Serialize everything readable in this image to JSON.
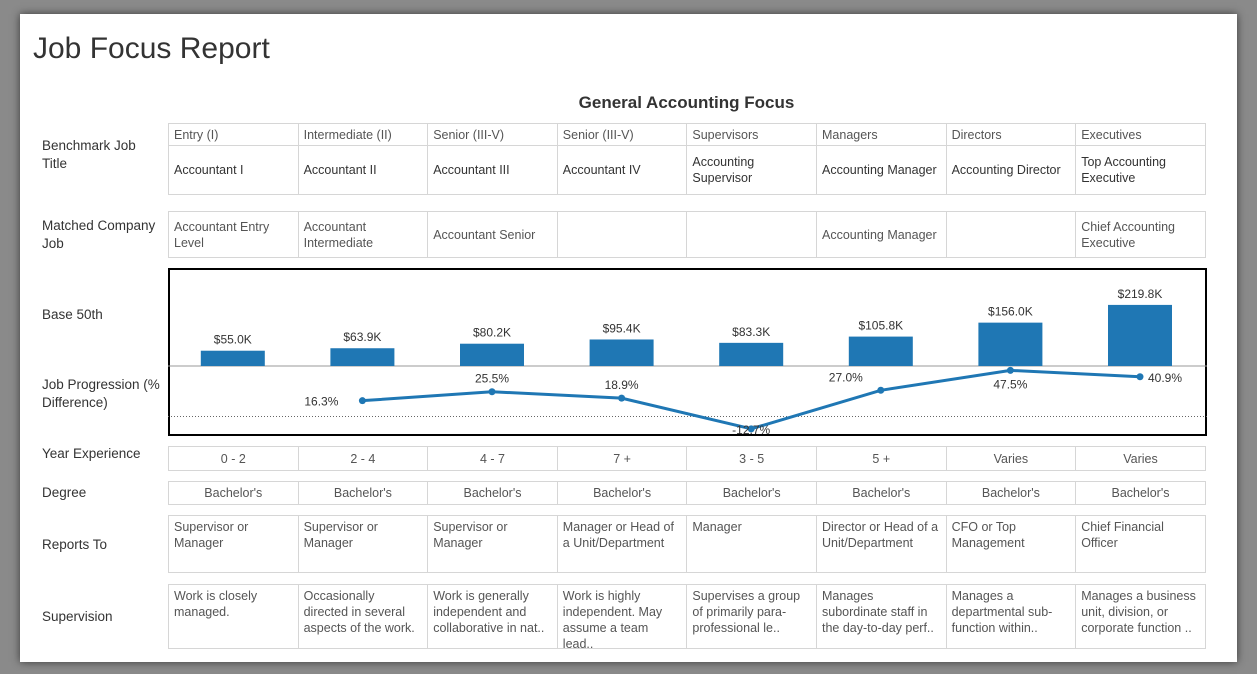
{
  "header": {
    "title": "Job Focus Report",
    "subtitle": "General Accounting Focus"
  },
  "row_labels": [
    "Benchmark Job Title",
    "Matched Company Job",
    "Base 50th",
    "Job Progression (% Difference)",
    "Year Experience",
    "Degree",
    "Reports To",
    "Supervision"
  ],
  "table": {
    "benchmark_titles": [
      "Accountant I",
      "Accountant II",
      "Accountant III",
      "Accountant IV",
      "Accounting Supervisor",
      "Accounting Manager",
      "Accounting Director",
      "Top Accounting Executive"
    ],
    "matched_jobs": [
      "Accountant Entry Level",
      "Accountant Intermediate",
      "Accountant Senior",
      null,
      null,
      "Accounting Manager",
      null,
      "Chief Accounting Executive"
    ],
    "experience": [
      "0 - 2",
      "2 - 4",
      "4 - 7",
      "7 +",
      "3 - 5",
      "5 +",
      "Varies",
      "Varies"
    ],
    "degree": [
      "Bachelor's",
      "Bachelor's",
      "Bachelor's",
      "Bachelor's",
      "Bachelor's",
      "Bachelor's",
      "Bachelor's",
      "Bachelor's"
    ],
    "reports_to": [
      "Supervisor or Manager",
      "Supervisor or Manager",
      "Supervisor or Manager",
      "Manager or Head of a Unit/Department",
      "Manager",
      "Director or Head of a Unit/Department",
      "CFO or Top Management",
      "Chief Financial Officer"
    ],
    "supervision": [
      "Work is closely managed.",
      "Occasionally directed in several aspects of the work.",
      "Work is generally independent and collaborative in nat..",
      "Work is highly independent. May assume a team lead..",
      "Supervises a group of primarily para-professional le..",
      "Manages subordinate staff in the day-to-day perf..",
      "Manages a departmental sub-function within..",
      "Manages a business unit, division, or corporate function .."
    ]
  },
  "chart_data": {
    "type": "bar_line",
    "categories": [
      "Entry (I)",
      "Intermediate (II)",
      "Senior (III-V)",
      "Senior (III-V)",
      "Supervisors",
      "Managers",
      "Directors",
      "Executives"
    ],
    "ylim": [
      0,
      295000
    ],
    "y2lim": [
      -18,
      52
    ],
    "series": [
      {
        "type": "bar",
        "color": "#1f77b4",
        "values": [
          55000,
          63900,
          80200,
          95400,
          83300,
          105800,
          156000,
          219800
        ],
        "value_labels": [
          "$55.0K",
          "$63.9K",
          "$80.2K",
          "$95.4K",
          "$83.3K",
          "$105.8K",
          "$156.0K",
          "$219.8K"
        ]
      },
      {
        "type": "line",
        "axis": "y2",
        "color": "#1f77b4",
        "values": [
          null,
          16.3,
          25.5,
          18.9,
          -12.7,
          27.0,
          47.5,
          40.9
        ],
        "value_labels": [
          null,
          "16.3%",
          "25.5%",
          "18.9%",
          "-12.7%",
          "27.0%",
          "47.5%",
          "40.9%"
        ]
      }
    ]
  }
}
